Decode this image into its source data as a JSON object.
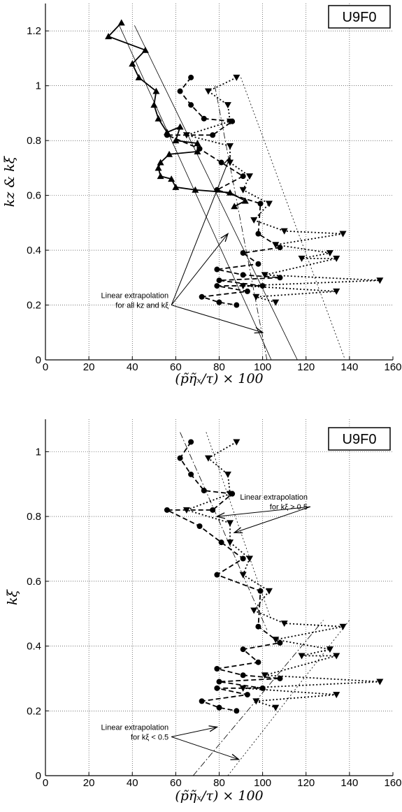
{
  "chart_data": [
    {
      "type": "line",
      "tag": "U9F0",
      "xlabel": "(p̃η̃ₓ/τ) × 100",
      "ylabel": "kz & kξ",
      "xlim": [
        0,
        160
      ],
      "ylim": [
        0,
        1.3
      ],
      "xticks": [
        0,
        20,
        40,
        60,
        80,
        100,
        120,
        140,
        160
      ],
      "yticks": [
        0,
        0.2,
        0.4,
        0.6,
        0.8,
        1,
        1.2
      ],
      "ytick_labels": [
        "0",
        "0.2",
        "0.4",
        "0.6",
        "0.8",
        "1",
        "1.2"
      ],
      "grid": true,
      "series": [
        {
          "marker": "triangle-up",
          "style": "solid",
          "width": 1.8,
          "x": [
            35,
            29,
            46,
            40,
            43,
            51,
            50,
            52,
            56,
            62,
            60,
            70,
            70,
            57,
            53,
            52,
            53,
            58,
            60,
            69,
            85,
            92,
            87
          ],
          "y": [
            1.23,
            1.18,
            1.13,
            1.08,
            1.03,
            0.98,
            0.93,
            0.88,
            0.83,
            0.85,
            0.8,
            0.79,
            0.76,
            0.75,
            0.72,
            0.7,
            0.67,
            0.66,
            0.63,
            0.62,
            0.61,
            0.58,
            0.56
          ]
        },
        {
          "marker": "circle",
          "style": "dashed",
          "width": 1.8,
          "x": [
            67,
            62,
            67,
            73,
            86,
            77,
            56,
            71,
            81,
            91,
            79,
            99,
            98,
            108,
            91,
            98,
            79,
            91,
            108,
            80,
            100,
            79,
            93,
            72,
            80,
            88
          ],
          "y": [
            1.03,
            0.98,
            0.93,
            0.88,
            0.87,
            0.82,
            0.82,
            0.77,
            0.72,
            0.67,
            0.62,
            0.57,
            0.46,
            0.41,
            0.39,
            0.35,
            0.33,
            0.31,
            0.3,
            0.29,
            0.27,
            0.27,
            0.25,
            0.23,
            0.21,
            0.2
          ]
        },
        {
          "marker": "triangle-down",
          "style": "dotted",
          "width": 1.8,
          "x": [
            88,
            75,
            84,
            85,
            65,
            85,
            85,
            94,
            91,
            103,
            96,
            110,
            137,
            106,
            131,
            118,
            134,
            101,
            154,
            91,
            134,
            97,
            106
          ],
          "y": [
            1.03,
            0.98,
            0.93,
            0.87,
            0.82,
            0.78,
            0.72,
            0.67,
            0.62,
            0.57,
            0.51,
            0.47,
            0.46,
            0.42,
            0.39,
            0.37,
            0.37,
            0.31,
            0.29,
            0.27,
            0.25,
            0.23,
            0.21
          ]
        },
        {
          "marker": "none",
          "style": "solid",
          "width": 0.8,
          "x": [
            41,
            116
          ],
          "y": [
            1.22,
            0
          ]
        },
        {
          "marker": "none",
          "style": "solid",
          "width": 0.8,
          "x": [
            34,
            104
          ],
          "y": [
            1.22,
            0
          ]
        },
        {
          "marker": "none",
          "style": "dashdot",
          "width": 0.8,
          "x": [
            78,
            102
          ],
          "y": [
            1.0,
            0
          ]
        },
        {
          "marker": "none",
          "style": "dotted",
          "width": 0.8,
          "x": [
            90,
            138
          ],
          "y": [
            1.03,
            0
          ]
        }
      ],
      "annotation": {
        "lines": [
          "Linear extrapolation",
          "for all kz and kξ"
        ],
        "anchor": [
          58,
          0.2
        ],
        "targets": [
          [
            85,
            0.74
          ],
          [
            84,
            0.46
          ],
          [
            100,
            0.1
          ]
        ]
      }
    },
    {
      "type": "line",
      "tag": "U9F0",
      "xlabel": "(p̃η̃ₓ/τ) × 100",
      "ylabel": "kξ",
      "xlim": [
        0,
        160
      ],
      "ylim": [
        0,
        1.1
      ],
      "xticks": [
        0,
        20,
        40,
        60,
        80,
        100,
        120,
        140,
        160
      ],
      "yticks": [
        0,
        0.2,
        0.4,
        0.6,
        0.8,
        1
      ],
      "ytick_labels": [
        "0",
        "0.2",
        "0.4",
        "0.6",
        "0.8",
        "1"
      ],
      "grid": true,
      "series": [
        {
          "marker": "circle",
          "style": "dashed",
          "width": 1.8,
          "x": [
            67,
            62,
            67,
            73,
            86,
            77,
            56,
            71,
            81,
            91,
            79,
            99,
            98,
            108,
            91,
            98,
            79,
            91,
            108,
            80,
            100,
            79,
            93,
            72,
            80,
            88
          ],
          "y": [
            1.03,
            0.98,
            0.93,
            0.88,
            0.87,
            0.82,
            0.82,
            0.77,
            0.72,
            0.67,
            0.62,
            0.57,
            0.46,
            0.41,
            0.39,
            0.35,
            0.33,
            0.31,
            0.3,
            0.29,
            0.27,
            0.27,
            0.25,
            0.23,
            0.21,
            0.2
          ]
        },
        {
          "marker": "triangle-down",
          "style": "dotted",
          "width": 1.8,
          "x": [
            88,
            75,
            84,
            85,
            65,
            85,
            85,
            94,
            91,
            103,
            96,
            110,
            137,
            106,
            131,
            118,
            134,
            101,
            154,
            91,
            134,
            97,
            106
          ],
          "y": [
            1.03,
            0.98,
            0.93,
            0.87,
            0.82,
            0.78,
            0.72,
            0.67,
            0.62,
            0.57,
            0.51,
            0.47,
            0.46,
            0.42,
            0.39,
            0.37,
            0.37,
            0.31,
            0.29,
            0.27,
            0.25,
            0.23,
            0.21
          ]
        },
        {
          "marker": "none",
          "style": "dashdot",
          "width": 0.8,
          "x": [
            62,
            102
          ],
          "y": [
            1.06,
            0.45
          ]
        },
        {
          "marker": "none",
          "style": "dotted",
          "width": 0.8,
          "x": [
            74,
            104
          ],
          "y": [
            1.06,
            0.48
          ]
        },
        {
          "marker": "none",
          "style": "dashdot",
          "width": 0.8,
          "x": [
            68,
            128
          ],
          "y": [
            0,
            0.48
          ]
        },
        {
          "marker": "none",
          "style": "dotted",
          "width": 0.8,
          "x": [
            84,
            140
          ],
          "y": [
            0,
            0.48
          ]
        }
      ],
      "annotations": [
        {
          "lines": [
            "Linear extrapolation",
            "for kξ > 0.5"
          ],
          "anchor": [
            122,
            0.83
          ],
          "targets": [
            [
              79,
              0.8
            ],
            [
              87,
              0.75
            ]
          ]
        },
        {
          "lines": [
            "Linear extrapolation",
            "for kξ < 0.5"
          ],
          "anchor": [
            58,
            0.12
          ],
          "targets": [
            [
              79,
              0.15
            ],
            [
              89,
              0.05
            ]
          ]
        }
      ]
    }
  ]
}
